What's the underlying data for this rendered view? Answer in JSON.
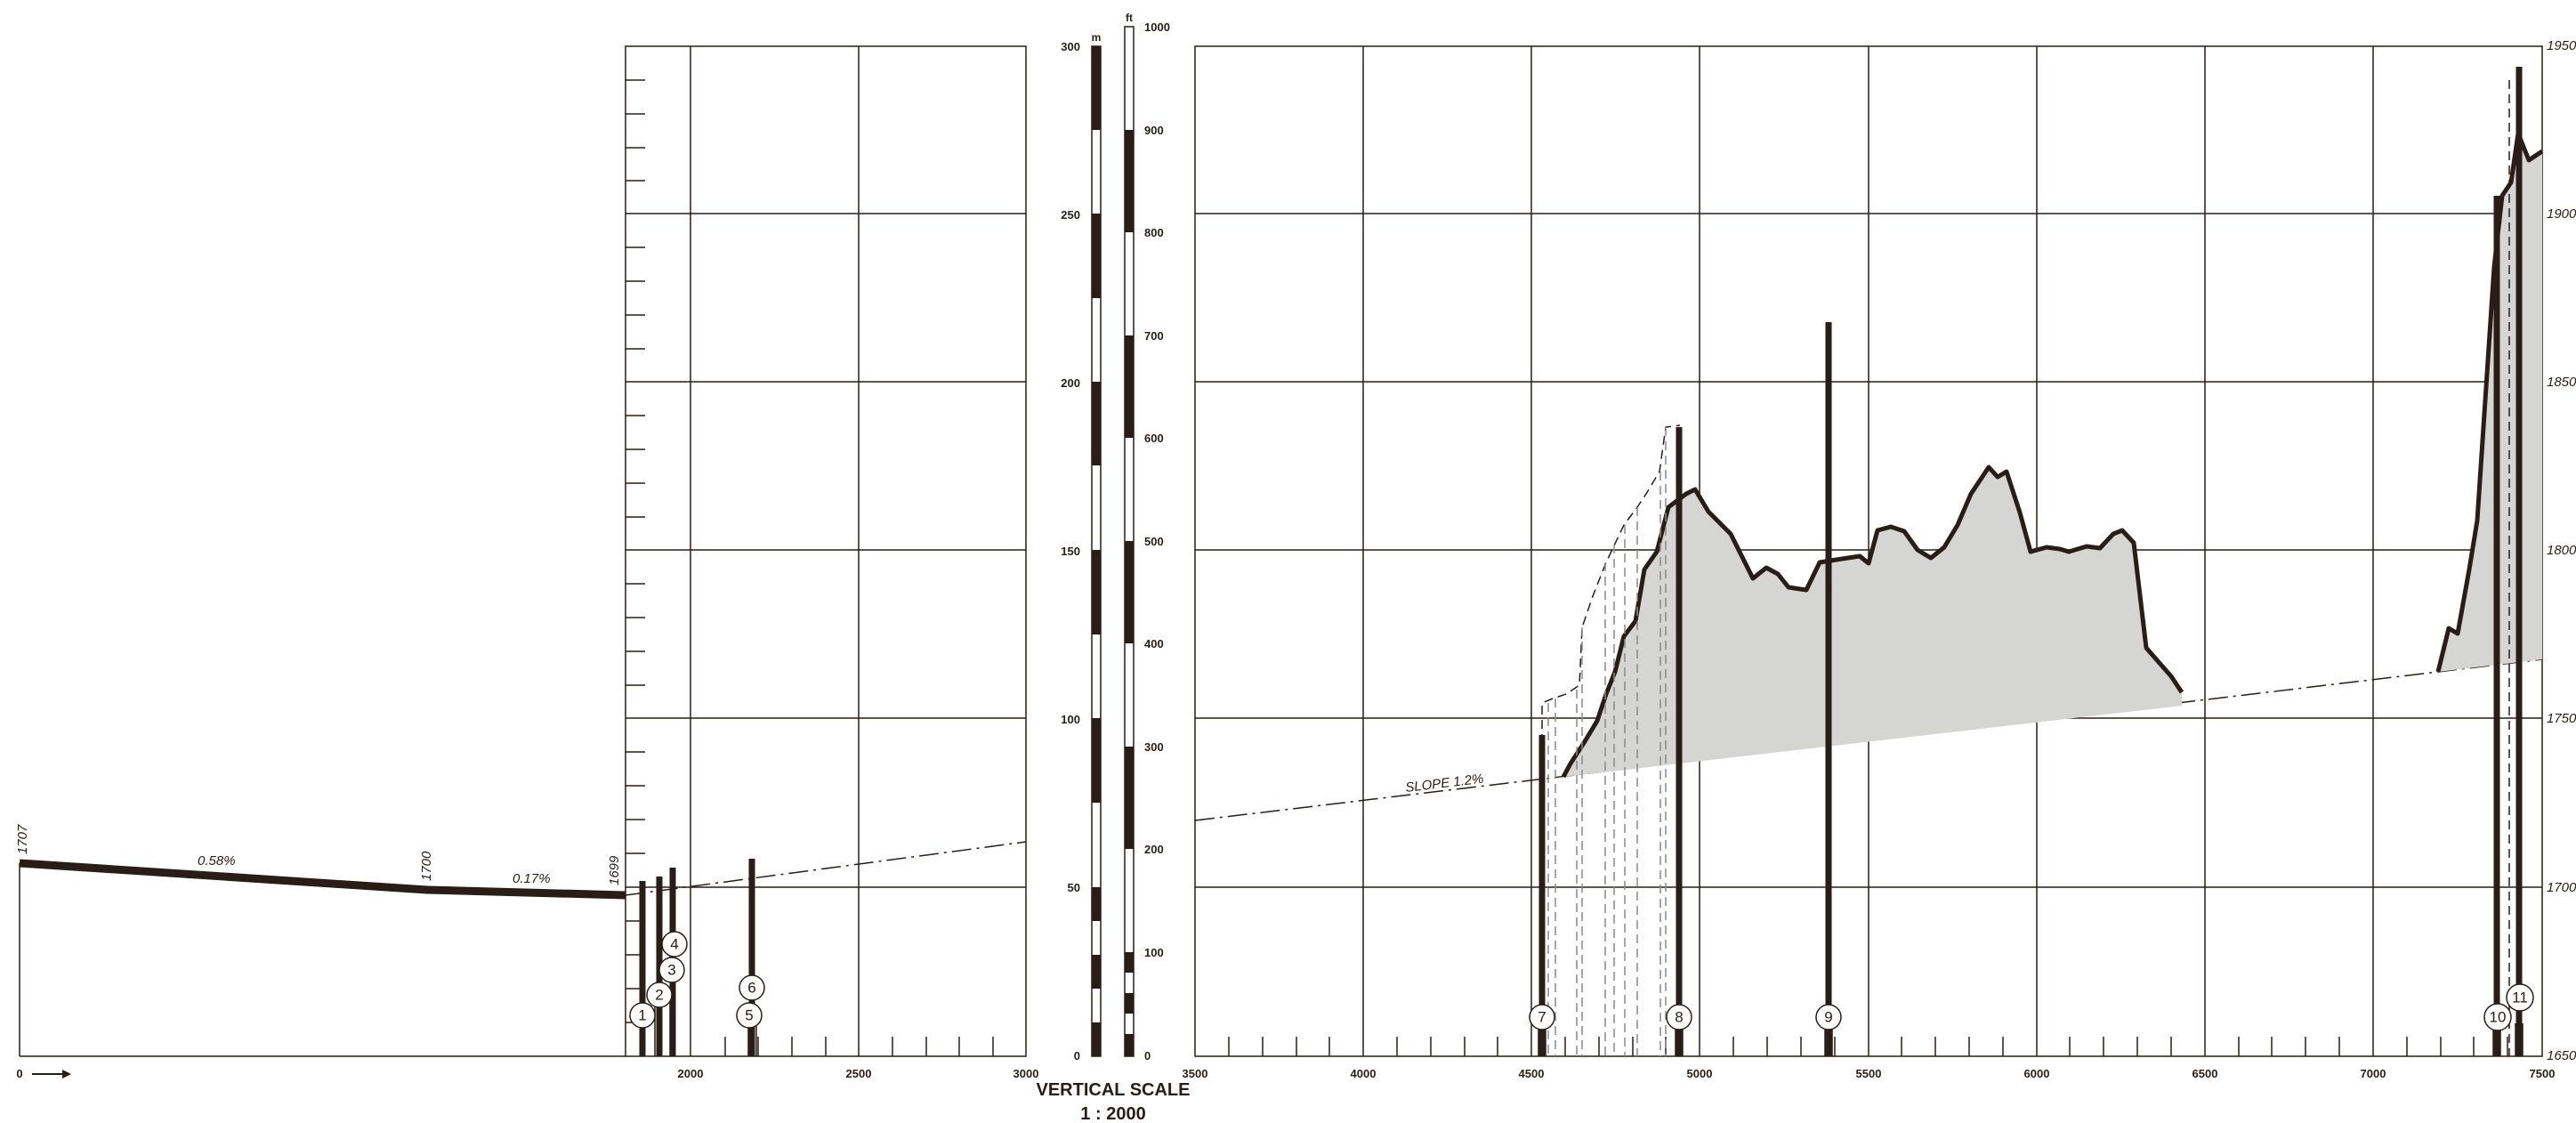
{
  "colors": {
    "ink": "#2a1d17",
    "rock": "#d5d5d3",
    "paper": "#ffffff"
  },
  "horizontal_axis": {
    "origin_label": "0",
    "left_ticks": [
      "2000",
      "2500",
      "3000"
    ],
    "right_ticks": [
      "3500",
      "4000",
      "4500",
      "5000",
      "5500",
      "6000",
      "6500",
      "7000",
      "7500"
    ]
  },
  "elevation_axis": {
    "labels": [
      "1950",
      "1900",
      "1850",
      "1800",
      "1750",
      "1700",
      "1650"
    ]
  },
  "left_profile": {
    "elevation_labels": [
      "1707",
      "1700",
      "1699"
    ],
    "slope_labels": [
      "0.58%",
      "0.17%"
    ]
  },
  "main_profile": {
    "slope_label": "SLOPE 1.2%"
  },
  "vertical_scale": {
    "m_unit": "m",
    "ft_unit": "ft",
    "m_labels": [
      "300",
      "250",
      "200",
      "150",
      "100",
      "50",
      "0"
    ],
    "ft_labels": [
      "1000",
      "900",
      "800",
      "700",
      "600",
      "500",
      "400",
      "300",
      "200",
      "100",
      "0"
    ],
    "title": "VERTICAL SCALE",
    "ratio": "1 : 2000"
  },
  "boreholes": [
    "1",
    "2",
    "3",
    "4",
    "5",
    "6",
    "7",
    "8",
    "9",
    "10",
    "11"
  ]
}
